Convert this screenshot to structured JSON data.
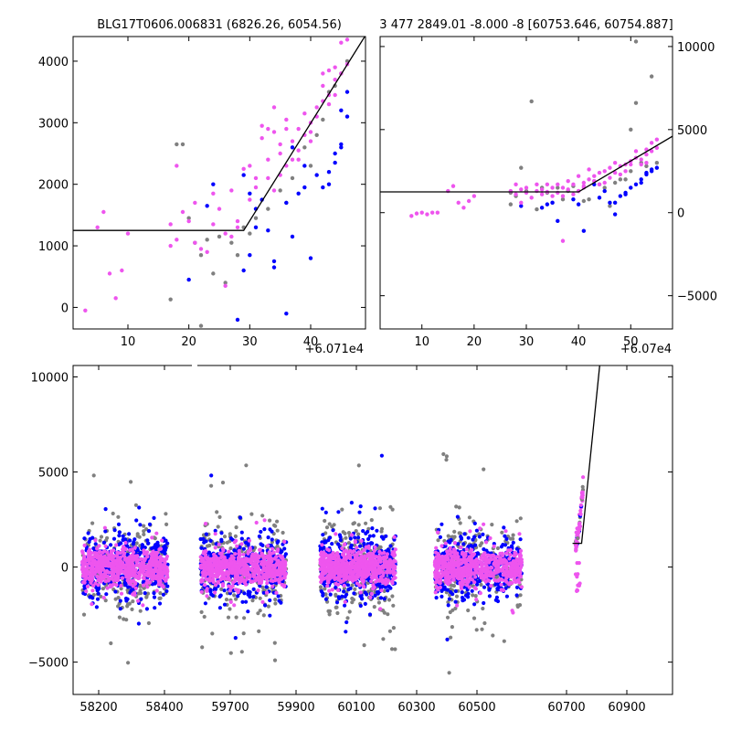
{
  "colors": {
    "grey": "#808080",
    "blue": "#0000ff",
    "magenta": "#ee55ee",
    "line": "#000000"
  },
  "chart_data": [
    {
      "type": "scatter",
      "title": "BLG17T0606.006831 (6826.26, 6054.56)",
      "x_offset_label": "+6.071e4",
      "xlim": [
        1,
        49
      ],
      "ylim": [
        -350,
        4400
      ],
      "xticks": [
        10,
        20,
        30,
        40
      ],
      "yticks": [
        0,
        1000,
        2000,
        3000,
        4000
      ],
      "model_line": [
        [
          1,
          1250
        ],
        [
          29,
          1250
        ],
        [
          49,
          4420
        ]
      ],
      "series": [
        {
          "color": "grey",
          "points": [
            [
              17,
              130
            ],
            [
              18,
              2650
            ],
            [
              19,
              2650
            ],
            [
              20,
              1450
            ],
            [
              21,
              1050
            ],
            [
              22,
              850
            ],
            [
              23,
              1100
            ],
            [
              24,
              550
            ],
            [
              25,
              1150
            ],
            [
              26,
              400
            ],
            [
              27,
              1050
            ],
            [
              28,
              850
            ],
            [
              29,
              1300
            ],
            [
              31,
              1450
            ],
            [
              33,
              1600
            ],
            [
              35,
              1900
            ],
            [
              37,
              2100
            ],
            [
              39,
              2600
            ],
            [
              41,
              2800
            ],
            [
              42,
              3050
            ],
            [
              43,
              3500
            ],
            [
              44,
              3600
            ],
            [
              45,
              3800
            ],
            [
              46,
              4000
            ],
            [
              22,
              -300
            ],
            [
              30,
              1200
            ],
            [
              36,
              1700
            ],
            [
              40,
              2300
            ]
          ]
        },
        {
          "color": "blue",
          "points": [
            [
              20,
              450
            ],
            [
              23,
              1650
            ],
            [
              24,
              2000
            ],
            [
              28,
              -200
            ],
            [
              29,
              600
            ],
            [
              30,
              850
            ],
            [
              30,
              1850
            ],
            [
              31,
              1600
            ],
            [
              32,
              1750
            ],
            [
              33,
              1250
            ],
            [
              34,
              750
            ],
            [
              34,
              650
            ],
            [
              36,
              -100
            ],
            [
              36,
              1700
            ],
            [
              37,
              1150
            ],
            [
              38,
              1850
            ],
            [
              39,
              1950
            ],
            [
              40,
              800
            ],
            [
              41,
              2150
            ],
            [
              42,
              1950
            ],
            [
              43,
              2000
            ],
            [
              44,
              2350
            ],
            [
              44,
              2500
            ],
            [
              45,
              2600
            ],
            [
              45,
              2650
            ],
            [
              46,
              3100
            ],
            [
              46,
              3500
            ],
            [
              45,
              3200
            ],
            [
              31,
              1300
            ],
            [
              29,
              2150
            ],
            [
              37,
              2600
            ],
            [
              39,
              2300
            ],
            [
              43,
              2200
            ]
          ]
        },
        {
          "color": "magenta",
          "points": [
            [
              3,
              -50
            ],
            [
              5,
              1300
            ],
            [
              6,
              1550
            ],
            [
              7,
              550
            ],
            [
              8,
              150
            ],
            [
              9,
              600
            ],
            [
              10,
              1200
            ],
            [
              17,
              1350
            ],
            [
              17,
              1000
            ],
            [
              18,
              1100
            ],
            [
              18,
              2300
            ],
            [
              19,
              1550
            ],
            [
              20,
              1400
            ],
            [
              21,
              1700
            ],
            [
              21,
              1050
            ],
            [
              22,
              950
            ],
            [
              23,
              900
            ],
            [
              24,
              1350
            ],
            [
              24,
              1850
            ],
            [
              25,
              1600
            ],
            [
              26,
              1200
            ],
            [
              27,
              1900
            ],
            [
              28,
              1400
            ],
            [
              29,
              2250
            ],
            [
              30,
              1750
            ],
            [
              31,
              2100
            ],
            [
              31,
              1950
            ],
            [
              32,
              2950
            ],
            [
              32,
              2750
            ],
            [
              33,
              2400
            ],
            [
              33,
              2100
            ],
            [
              34,
              1900
            ],
            [
              34,
              3250
            ],
            [
              35,
              2500
            ],
            [
              35,
              2150
            ],
            [
              36,
              2900
            ],
            [
              36,
              2300
            ],
            [
              37,
              2700
            ],
            [
              37,
              2400
            ],
            [
              38,
              2900
            ],
            [
              38,
              2550
            ],
            [
              39,
              3150
            ],
            [
              39,
              2800
            ],
            [
              40,
              3000
            ],
            [
              40,
              2700
            ],
            [
              41,
              3250
            ],
            [
              41,
              3100
            ],
            [
              42,
              3350
            ],
            [
              42,
              3600
            ],
            [
              43,
              3300
            ],
            [
              43,
              3450
            ],
            [
              44,
              3900
            ],
            [
              44,
              3700
            ],
            [
              45,
              3800
            ],
            [
              45,
              4300
            ],
            [
              46,
              4350
            ],
            [
              46,
              3950
            ],
            [
              26,
              350
            ],
            [
              27,
              1150
            ],
            [
              28,
              1300
            ],
            [
              34,
              2850
            ],
            [
              35,
              2650
            ],
            [
              36,
              3050
            ],
            [
              38,
              2400
            ],
            [
              40,
              2850
            ],
            [
              42,
              3800
            ],
            [
              43,
              3850
            ],
            [
              44,
              3450
            ],
            [
              30,
              2300
            ],
            [
              33,
              2900
            ]
          ]
        }
      ]
    },
    {
      "type": "scatter",
      "title": "3 477 2849.01 -8.000 -8 [60753.646, 60754.887]",
      "x_offset_label": "+6.07e4",
      "xlim": [
        2,
        58
      ],
      "ylim": [
        -7000,
        10600
      ],
      "xticks": [
        10,
        20,
        30,
        40,
        50
      ],
      "yticks": [
        -5000,
        0,
        5000,
        10000
      ],
      "model_line": [
        [
          2,
          1250
        ],
        [
          40,
          1250
        ],
        [
          58,
          4600
        ]
      ],
      "series": [
        {
          "color": "grey",
          "points": [
            [
              27,
              500
            ],
            [
              28,
              1000
            ],
            [
              29,
              2700
            ],
            [
              30,
              1300
            ],
            [
              31,
              6700
            ],
            [
              32,
              200
            ],
            [
              33,
              1500
            ],
            [
              34,
              1200
            ],
            [
              35,
              600
            ],
            [
              36,
              1500
            ],
            [
              37,
              800
            ],
            [
              38,
              1300
            ],
            [
              39,
              1600
            ],
            [
              40,
              1300
            ],
            [
              41,
              700
            ],
            [
              42,
              800
            ],
            [
              43,
              1900
            ],
            [
              44,
              1700
            ],
            [
              45,
              1500
            ],
            [
              46,
              400
            ],
            [
              47,
              1800
            ],
            [
              48,
              2000
            ],
            [
              49,
              2000
            ],
            [
              50,
              2500
            ],
            [
              51,
              6600
            ],
            [
              52,
              3000
            ],
            [
              53,
              2800
            ],
            [
              54,
              8200
            ],
            [
              55,
              3000
            ],
            [
              51,
              10300
            ],
            [
              50,
              5000
            ],
            [
              27,
              1200
            ]
          ]
        },
        {
          "color": "blue",
          "points": [
            [
              29,
              400
            ],
            [
              33,
              300
            ],
            [
              34,
              500
            ],
            [
              35,
              600
            ],
            [
              36,
              -500
            ],
            [
              39,
              800
            ],
            [
              40,
              500
            ],
            [
              41,
              -1100
            ],
            [
              43,
              1700
            ],
            [
              44,
              900
            ],
            [
              45,
              1300
            ],
            [
              46,
              600
            ],
            [
              47,
              -100
            ],
            [
              48,
              1000
            ],
            [
              49,
              1200
            ],
            [
              50,
              1500
            ],
            [
              51,
              1700
            ],
            [
              52,
              1800
            ],
            [
              53,
              2300
            ],
            [
              54,
              2500
            ],
            [
              55,
              2700
            ],
            [
              54,
              2600
            ],
            [
              53,
              2400
            ],
            [
              52,
              2000
            ],
            [
              49,
              1100
            ],
            [
              47,
              600
            ]
          ]
        },
        {
          "color": "magenta",
          "points": [
            [
              8,
              -200
            ],
            [
              9,
              -50
            ],
            [
              10,
              0
            ],
            [
              11,
              -100
            ],
            [
              12,
              0
            ],
            [
              13,
              0
            ],
            [
              15,
              1300
            ],
            [
              16,
              1600
            ],
            [
              17,
              600
            ],
            [
              18,
              300
            ],
            [
              19,
              700
            ],
            [
              20,
              1000
            ],
            [
              27,
              1300
            ],
            [
              28,
              1100
            ],
            [
              29,
              1400
            ],
            [
              30,
              1200
            ],
            [
              31,
              900
            ],
            [
              32,
              1300
            ],
            [
              33,
              1400
            ],
            [
              34,
              1250
            ],
            [
              35,
              1000
            ],
            [
              36,
              1700
            ],
            [
              37,
              1000
            ],
            [
              38,
              1400
            ],
            [
              39,
              1700
            ],
            [
              40,
              1300
            ],
            [
              41,
              1500
            ],
            [
              42,
              2000
            ],
            [
              43,
              2200
            ],
            [
              44,
              1700
            ],
            [
              45,
              2500
            ],
            [
              46,
              2100
            ],
            [
              47,
              2400
            ],
            [
              48,
              2800
            ],
            [
              49,
              2900
            ],
            [
              50,
              3100
            ],
            [
              51,
              3300
            ],
            [
              52,
              3200
            ],
            [
              53,
              3500
            ],
            [
              54,
              3700
            ],
            [
              55,
              4400
            ],
            [
              54,
              4200
            ],
            [
              53,
              3800
            ],
            [
              52,
              2900
            ],
            [
              51,
              3700
            ],
            [
              50,
              2900
            ],
            [
              49,
              2500
            ],
            [
              48,
              2300
            ],
            [
              47,
              3000
            ],
            [
              46,
              2700
            ],
            [
              45,
              1800
            ],
            [
              44,
              2400
            ],
            [
              43,
              1900
            ],
            [
              42,
              2600
            ],
            [
              41,
              1800
            ],
            [
              40,
              2200
            ],
            [
              39,
              1100
            ],
            [
              38,
              1900
            ],
            [
              37,
              1500
            ],
            [
              36,
              1200
            ],
            [
              35,
              1500
            ],
            [
              34,
              1700
            ],
            [
              33,
              1100
            ],
            [
              32,
              1700
            ],
            [
              30,
              1500
            ],
            [
              29,
              600
            ],
            [
              28,
              1700
            ],
            [
              37,
              -1700
            ],
            [
              41,
              1600
            ],
            [
              55,
              3900
            ],
            [
              53,
              3000
            ]
          ]
        }
      ]
    },
    {
      "type": "scatter",
      "xlim": [
        58120,
        60960
      ],
      "ylim": [
        -6700,
        10600
      ],
      "xticks": [
        58200,
        58400,
        59700,
        59900,
        60100,
        60300,
        60500,
        60700,
        60900
      ],
      "yticks": [
        -5000,
        0,
        5000,
        10000
      ],
      "clusters": [
        {
          "x_range": [
            58150,
            58410
          ]
        },
        {
          "x_range": [
            59610,
            59870
          ]
        },
        {
          "x_range": [
            59980,
            60230
          ]
        },
        {
          "x_range": [
            60360,
            60600
          ]
        }
      ],
      "rising_points_x_range": [
        60730,
        60755
      ],
      "model_line": [
        [
          60720,
          1250
        ],
        [
          60750,
          1250
        ],
        [
          60810,
          10600
        ]
      ]
    }
  ]
}
